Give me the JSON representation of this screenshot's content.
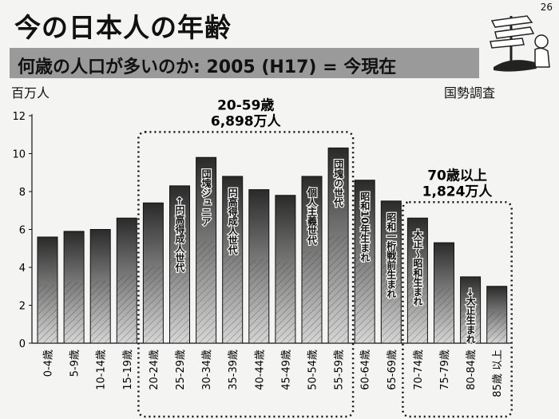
{
  "page": {
    "title": "今の日本人の年齢",
    "number": "26",
    "banner": "何歳の人口が多いのか: 2005 (H17) = 今現在",
    "ylabel": "百万人",
    "source": "国勢調査"
  },
  "chart_data": {
    "type": "bar",
    "title": "今の日本人の年齢",
    "ylabel": "百万人",
    "ylim": [
      0,
      12
    ],
    "yticks": [
      "0",
      "2",
      "4",
      "6",
      "8",
      "10",
      "12"
    ],
    "grid": false,
    "categories": [
      "0-4歳",
      "5-9歳",
      "10-14歳",
      "15-19歳",
      "20-24歳",
      "25-29歳",
      "30-34歳",
      "35-39歳",
      "40-44歳",
      "45-49歳",
      "50-54歳",
      "55-59歳",
      "60-64歳",
      "65-69歳",
      "70-74歳",
      "75-79歳",
      "80-84歳",
      "85歳 以上"
    ],
    "values": [
      5.6,
      5.9,
      6.0,
      6.6,
      7.4,
      8.3,
      9.8,
      8.8,
      8.1,
      7.8,
      8.8,
      10.3,
      8.6,
      7.5,
      6.6,
      5.3,
      3.5,
      3.0
    ],
    "bar_labels": [
      {
        "index": 5,
        "text": "←円高得成人世代"
      },
      {
        "index": 6,
        "text": "団塊ジュニア"
      },
      {
        "index": 7,
        "text": "円高得成人世代"
      },
      {
        "index": 10,
        "text": "個人主義世代"
      },
      {
        "index": 11,
        "text": "団塊の世代"
      },
      {
        "index": 12,
        "text": "昭和10年生まれ"
      },
      {
        "index": 13,
        "text": "昭和一桁戦前生まれ"
      },
      {
        "index": 14,
        "text": "大正～昭和生まれ"
      },
      {
        "index": 16,
        "text": "→大正生まれ"
      }
    ],
    "groups": [
      {
        "text": "20-59歳",
        "subtext": "6,898万人",
        "start": 4,
        "end": 11
      },
      {
        "text": "70歳以上",
        "subtext": "1,824万人",
        "start": 14,
        "end": 17
      }
    ],
    "colors": {
      "bar_dark": "#2a2a2a",
      "bar_light": "#d6d6d6",
      "hatch": "#333333"
    }
  }
}
